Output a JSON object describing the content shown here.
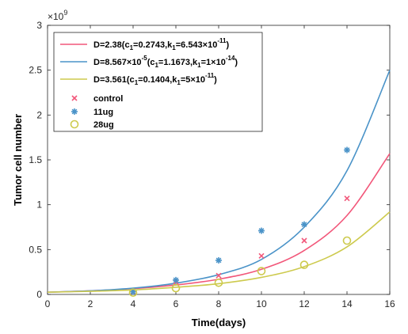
{
  "chart_data": {
    "type": "scatter",
    "xlabel": "Time(days)",
    "ylabel": "Tumor cell number",
    "exponent_label": "×10",
    "exponent_power": "9",
    "xlim": [
      0,
      16
    ],
    "ylim": [
      0,
      3
    ],
    "y_scale": 1000000000.0,
    "xticks": [
      0,
      2,
      4,
      6,
      8,
      10,
      12,
      14,
      16
    ],
    "yticks": [
      0,
      0.5,
      1,
      1.5,
      2,
      2.5,
      3
    ],
    "xtick_labels": [
      "0",
      "2",
      "4",
      "6",
      "8",
      "10",
      "12",
      "14",
      "16"
    ],
    "ytick_labels": [
      "0",
      "0.5",
      "1",
      "1.5",
      "2",
      "2.5",
      "3"
    ],
    "legend_position": "top-left",
    "model_lines": [
      {
        "legend": {
          "pre": "D=2.38(c",
          "s1": "1",
          "mid": "=0.2743,k",
          "s2": "1",
          "post": "=6.543×10",
          "exp": "-11",
          "end": ")"
        },
        "color": "#f2577a",
        "x": [
          0,
          2,
          4,
          6,
          8,
          10,
          12,
          14,
          16
        ],
        "y": [
          0.025,
          0.04,
          0.065,
          0.105,
          0.17,
          0.28,
          0.49,
          0.88,
          1.57
        ]
      },
      {
        "legend": {
          "pre": "D=8.567×10",
          "exp0": "-5",
          "pre2": "(c",
          "s1": "1",
          "mid": "=1.1673,k",
          "s2": "1",
          "post": "=1×10",
          "exp": "-14",
          "end": ")"
        },
        "color": "#4a93c8",
        "x": [
          0,
          2,
          4,
          6,
          8,
          10,
          12,
          14,
          16
        ],
        "y": [
          0.025,
          0.04,
          0.07,
          0.125,
          0.22,
          0.39,
          0.75,
          1.38,
          2.5
        ]
      },
      {
        "legend": {
          "pre": "D=3.561(c",
          "s1": "1",
          "mid": "=0.1404,k",
          "s2": "1",
          "post": "=5×10",
          "exp": "-11",
          "end": ")"
        },
        "color": "#cdca4d",
        "x": [
          0,
          2,
          4,
          6,
          8,
          10,
          12,
          14,
          16
        ],
        "y": [
          0.025,
          0.035,
          0.05,
          0.08,
          0.12,
          0.19,
          0.31,
          0.53,
          0.92
        ]
      }
    ],
    "series": [
      {
        "name": "control",
        "marker": "x",
        "color": "#f2577a",
        "x": [
          4,
          6,
          8,
          10,
          12,
          14
        ],
        "y": [
          0.03,
          0.14,
          0.21,
          0.43,
          0.6,
          1.07
        ]
      },
      {
        "name": "11ug",
        "marker": "star",
        "color": "#4a93c8",
        "x": [
          4,
          6,
          8,
          10,
          12,
          14
        ],
        "y": [
          0.03,
          0.16,
          0.38,
          0.71,
          0.78,
          1.61
        ]
      },
      {
        "name": "28ug",
        "marker": "circle",
        "color": "#cdca4d",
        "x": [
          4,
          6,
          8,
          10,
          12,
          14
        ],
        "y": [
          0.02,
          0.07,
          0.13,
          0.26,
          0.33,
          0.6
        ]
      }
    ]
  }
}
